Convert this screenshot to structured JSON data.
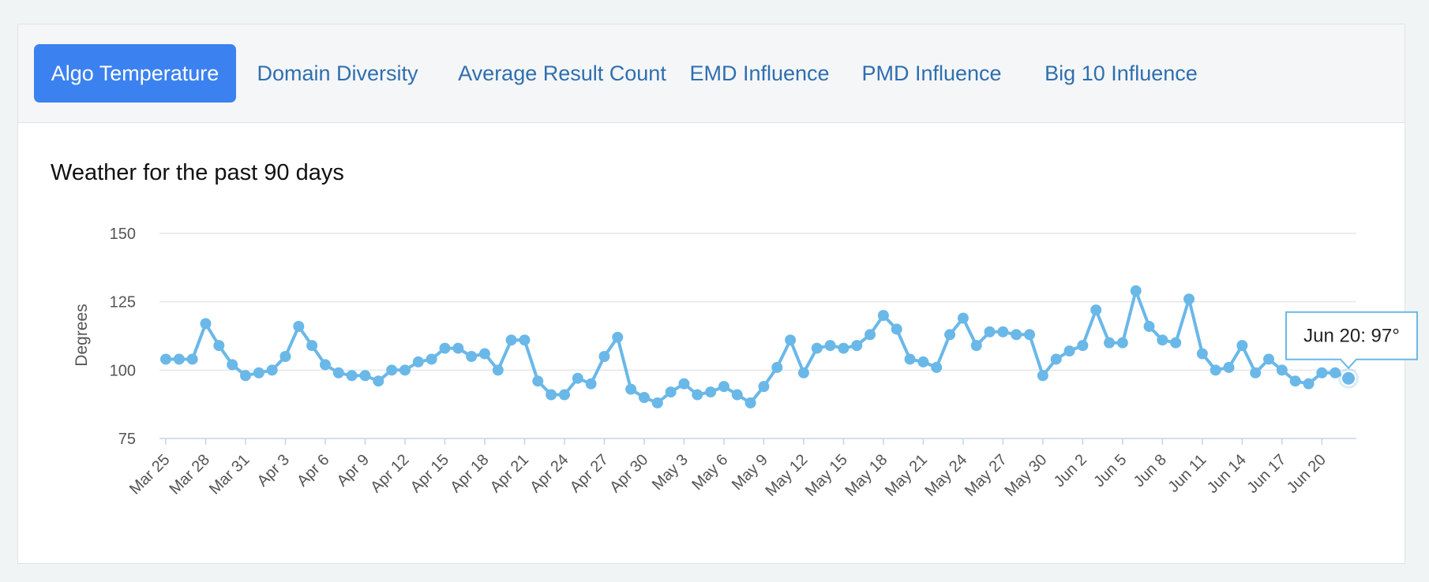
{
  "tabs": [
    {
      "label": "Algo Temperature",
      "active": true
    },
    {
      "label": "Domain Diversity",
      "active": false
    },
    {
      "label": "Average Result Count",
      "active": false
    },
    {
      "label": "EMD Influence",
      "active": false
    },
    {
      "label": "PMD Influence",
      "active": false
    },
    {
      "label": "Big 10 Influence",
      "active": false
    }
  ],
  "colors": {
    "accent": "#3b82f0",
    "line": "#6ab8e8",
    "grid": "#e3e6e8"
  },
  "chart_data": {
    "type": "line",
    "title": "Weather for the past 90 days",
    "xlabel": "",
    "ylabel": "Degrees",
    "ylim": [
      75,
      150
    ],
    "yticks": [
      75,
      100,
      125,
      150
    ],
    "x_tick_labels": [
      "Mar 25",
      "Mar 28",
      "Mar 31",
      "Apr 3",
      "Apr 6",
      "Apr 9",
      "Apr 12",
      "Apr 15",
      "Apr 18",
      "Apr 21",
      "Apr 24",
      "Apr 27",
      "Apr 30",
      "May 3",
      "May 6",
      "May 9",
      "May 12",
      "May 15",
      "May 18",
      "May 21",
      "May 24",
      "May 27",
      "May 30",
      "Jun 2",
      "Jun 5",
      "Jun 8",
      "Jun 11",
      "Jun 14",
      "Jun 17",
      "Jun 20"
    ],
    "series": [
      {
        "name": "Algo Temperature",
        "values": [
          104,
          104,
          104,
          117,
          109,
          102,
          98,
          99,
          100,
          105,
          116,
          109,
          102,
          99,
          98,
          98,
          96,
          100,
          100,
          103,
          104,
          108,
          108,
          105,
          106,
          100,
          111,
          111,
          96,
          91,
          91,
          97,
          95,
          105,
          112,
          93,
          90,
          88,
          92,
          95,
          91,
          92,
          94,
          91,
          88,
          94,
          101,
          111,
          99,
          108,
          109,
          108,
          109,
          113,
          120,
          115,
          104,
          103,
          101,
          113,
          119,
          109,
          114,
          114,
          113,
          113,
          98,
          104,
          107,
          109,
          122,
          110,
          110,
          129,
          116,
          111,
          110,
          126,
          106,
          100,
          101,
          109,
          99,
          104,
          100,
          96,
          95,
          99,
          99,
          97
        ]
      }
    ],
    "tooltip": {
      "label": "Jun 20: 97°",
      "index": 89
    }
  }
}
